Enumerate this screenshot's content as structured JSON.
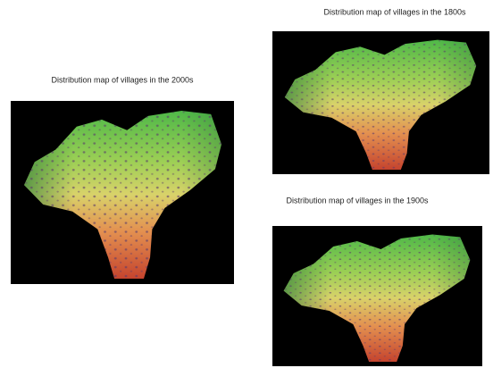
{
  "figures": [
    {
      "caption": "Distribution map of villages in the 2000s"
    },
    {
      "caption": "Distribution map of villages  in the 1800s"
    },
    {
      "caption": "Distribution map of villages in the 1900s"
    }
  ]
}
